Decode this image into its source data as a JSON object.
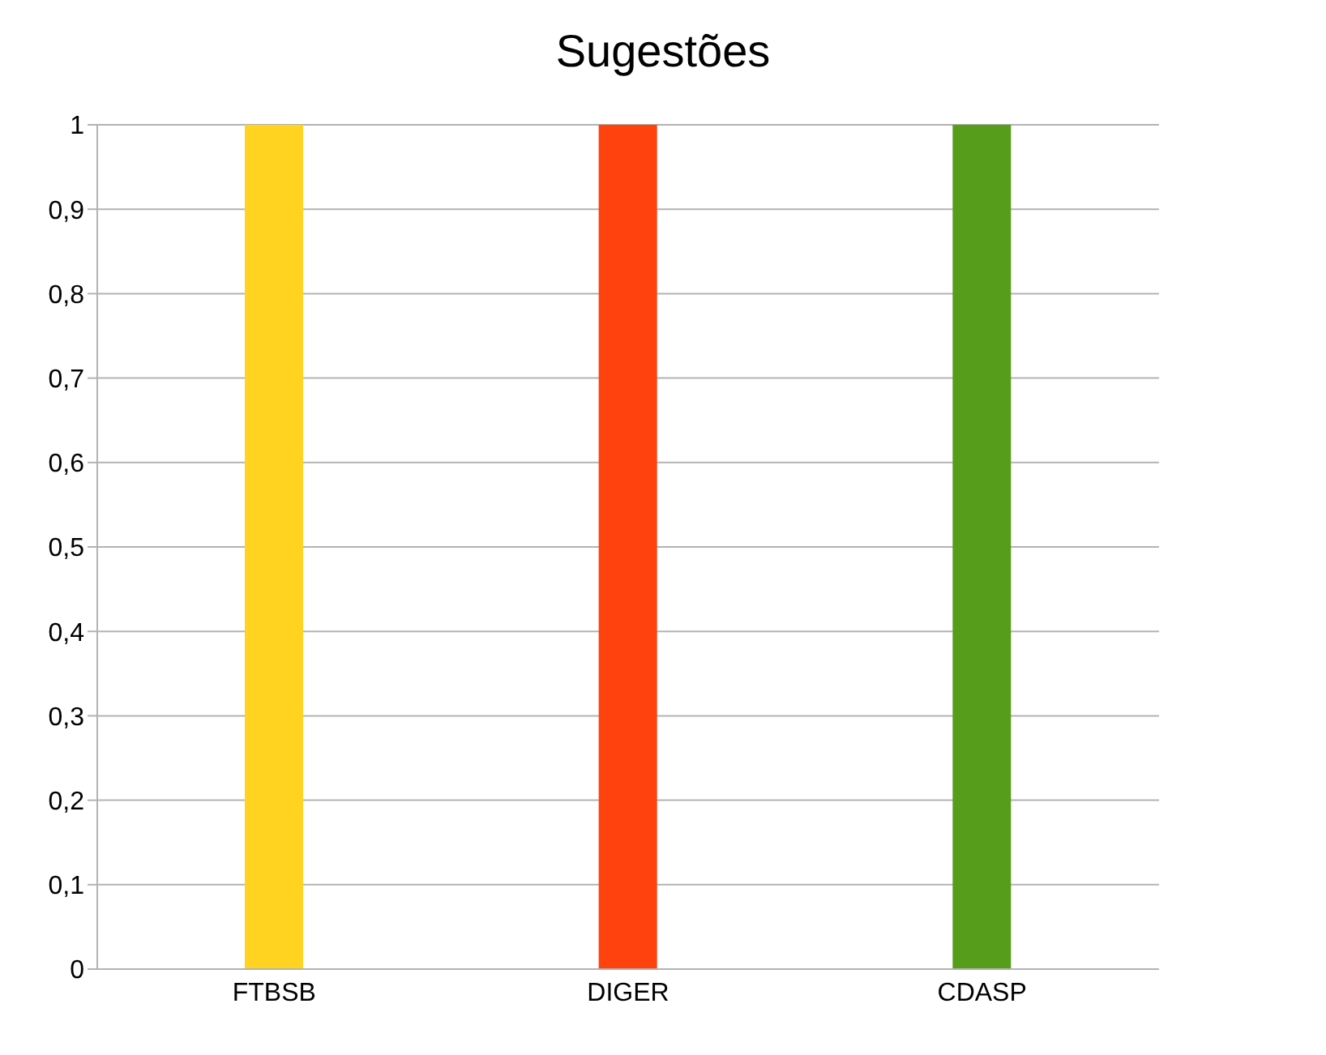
{
  "chart_data": {
    "type": "bar",
    "title": "Sugestões",
    "categories": [
      "FTBSB",
      "DIGER",
      "CDASP"
    ],
    "values": [
      1,
      1,
      1
    ],
    "colors": [
      "#ffd320",
      "#ff420e",
      "#579d1c"
    ],
    "ylim": [
      0,
      1
    ],
    "yticks": [
      0,
      {
        "value": 0.1,
        "label": "0,1"
      },
      {
        "value": 0.2,
        "label": "0,2"
      },
      {
        "value": 0.3,
        "label": "0,3"
      },
      {
        "value": 0.4,
        "label": "0,4"
      },
      {
        "value": 0.5,
        "label": "0,5"
      },
      {
        "value": 0.6,
        "label": "0,6"
      },
      {
        "value": 0.7,
        "label": "0,7"
      },
      {
        "value": 0.8,
        "label": "0,8"
      },
      {
        "value": 0.9,
        "label": "0,9"
      },
      1
    ],
    "grid": "y",
    "legend": false
  }
}
